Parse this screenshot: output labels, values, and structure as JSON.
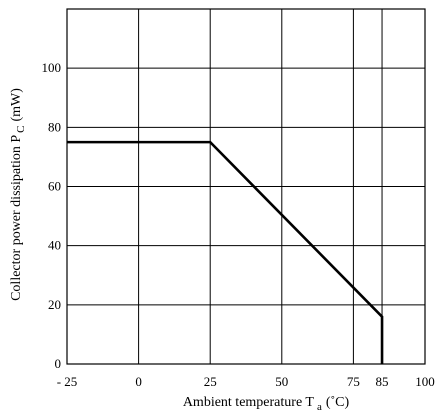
{
  "chart_data": {
    "type": "line",
    "title": "",
    "xlabel": "Ambient temperature T a (˚C)",
    "ylabel": "Collector power dissipation P C (mW)",
    "xlabel_parts": {
      "main": "Ambient temperature T",
      "sub": "a",
      "unit": "(˚C)"
    },
    "ylabel_parts": {
      "main": "Collector power dissipation P",
      "sub": "C",
      "unit": "(mW)"
    },
    "xlim": [
      -25,
      100
    ],
    "ylim": [
      0,
      120
    ],
    "x_ticks": [
      -25,
      0,
      25,
      50,
      75,
      85,
      100
    ],
    "x_tick_labels": [
      "- 25",
      "0",
      "25",
      "50",
      "75",
      "85",
      "100"
    ],
    "y_ticks": [
      0,
      20,
      40,
      60,
      80,
      100
    ],
    "y_tick_labels": [
      "0",
      "20",
      "40",
      "60",
      "80",
      "100"
    ],
    "x_grid": [
      -25,
      0,
      25,
      50,
      75,
      85,
      100
    ],
    "y_grid": [
      0,
      20,
      40,
      60,
      80,
      100,
      120
    ],
    "grid": true,
    "series": [
      {
        "x": [
          -25,
          25,
          85,
          85
        ],
        "y": [
          75,
          75,
          16,
          0
        ]
      }
    ]
  }
}
